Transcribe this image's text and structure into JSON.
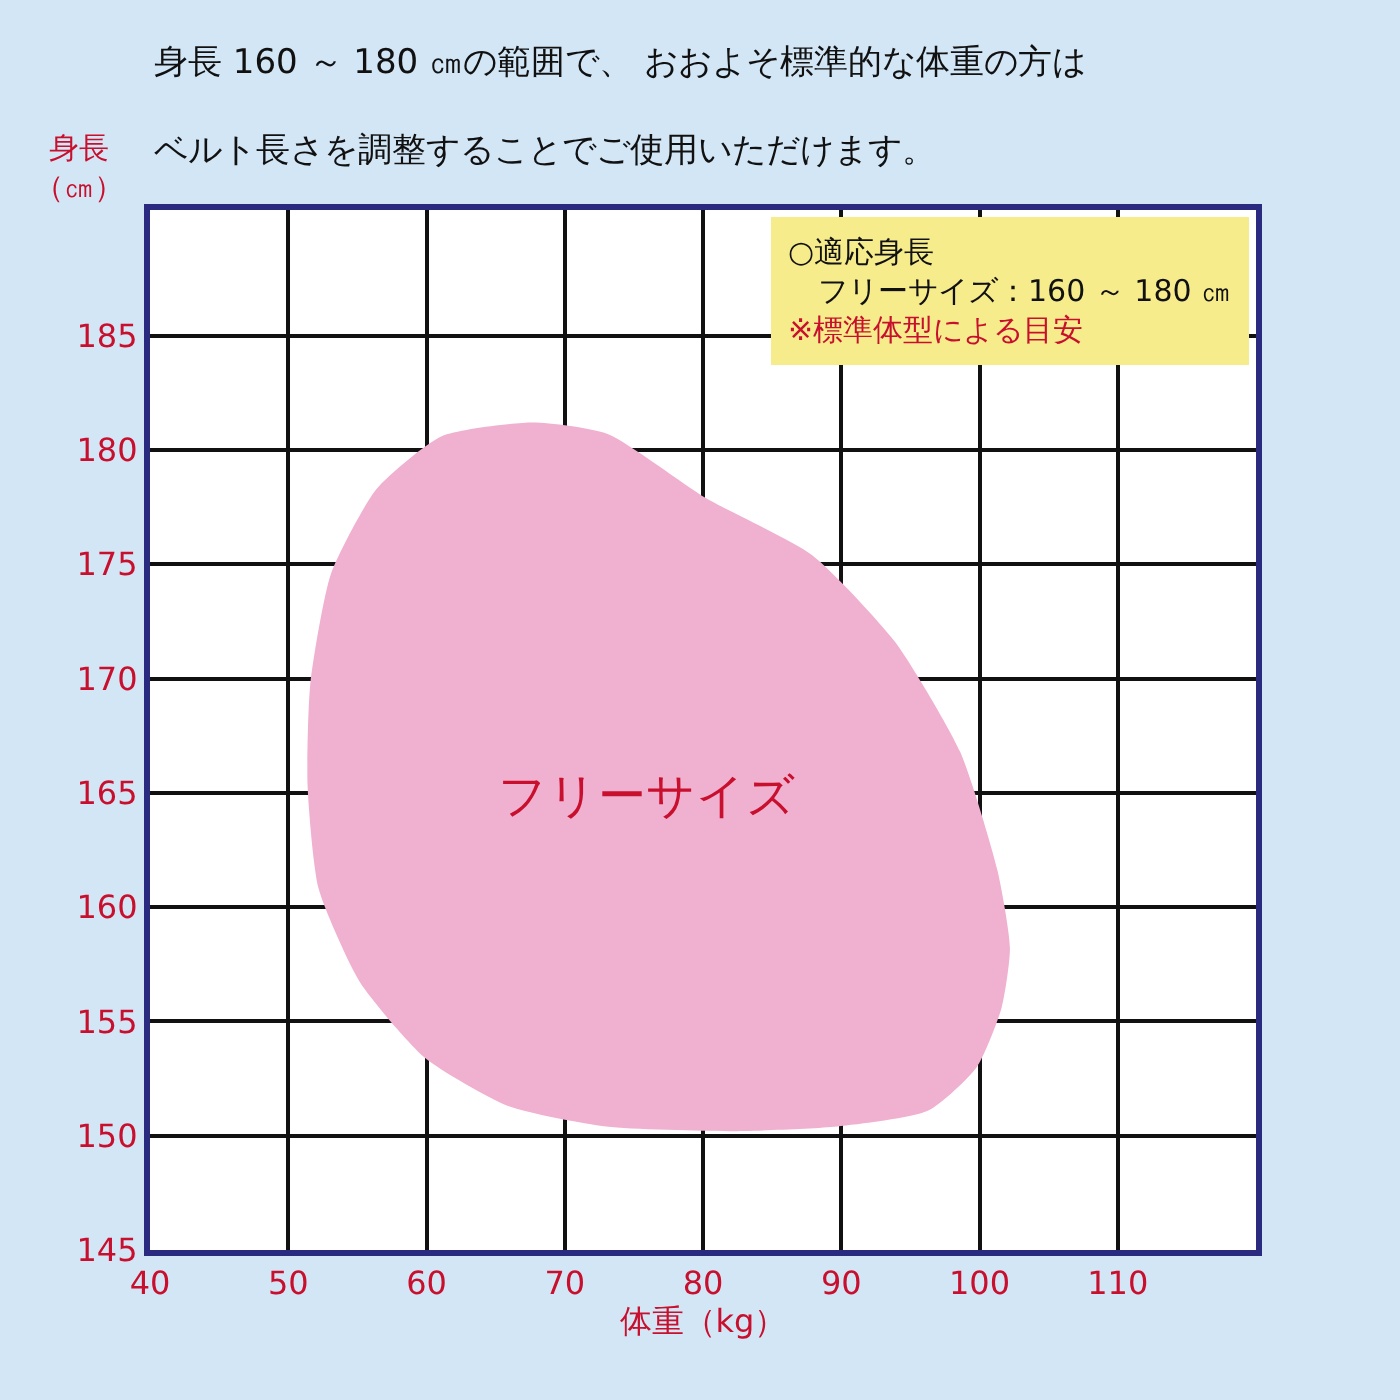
{
  "chart_data": {
    "type": "area",
    "title": "身長 160 ～ 180 ㎝の範囲で、 おおよそ標準的な体重の方は",
    "subtitle": "ベルト長さを調整することでご使用いただけます。",
    "xlabel": "体重（kg）",
    "ylabel": "身長（㎝）",
    "annotations": [
      "○適応身長",
      "　フリーサイズ：160 ～ 180 ㎝",
      "※標準体型による目安"
    ],
    "series": [
      {
        "name": "フリーサイズ",
        "color": "#f0b0d0",
        "x": [
          67.7,
          73.1,
          80.2,
          87.9,
          93.9,
          98.6,
          101.3,
          102.2,
          101.6,
          99.8,
          96.3,
          89.7,
          82.0,
          73.0,
          65.9,
          59.9,
          55.2,
          52.2,
          51.4,
          51.6,
          53.1,
          56.4,
          61.1,
          67.7
        ],
        "values": [
          181.2,
          180.7,
          177.9,
          175.4,
          171.6,
          166.8,
          161.6,
          158.2,
          155.6,
          153.0,
          151.1,
          150.4,
          150.2,
          150.4,
          151.3,
          153.4,
          156.7,
          160.8,
          165.3,
          169.8,
          174.6,
          178.3,
          180.6,
          181.2
        ]
      }
    ],
    "xlim": [
      40,
      120
    ],
    "xticks": [
      40,
      50,
      60,
      70,
      80,
      90,
      100,
      110
    ],
    "ylim": [
      145,
      190.5
    ],
    "yticks": [
      145,
      150,
      155,
      160,
      165,
      170,
      175,
      180,
      185
    ],
    "grid": true,
    "legend": false,
    "marker": "none"
  }
}
